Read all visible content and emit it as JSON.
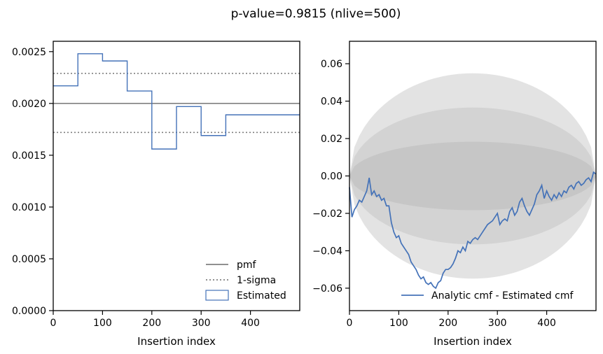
{
  "figure": {
    "suptitle": "p-value=0.9815 (nlive=500)"
  },
  "colors": {
    "estimated": "#4472b8",
    "pmf": "#808080",
    "sigma": "#808080",
    "band1": "#c6c6c6",
    "band2": "#d3d3d3",
    "band3": "#e3e3e3",
    "axes": "#000000"
  },
  "chart_data": [
    {
      "type": "step",
      "title": "",
      "xlabel": "Insertion index",
      "ylabel": "",
      "xlim": [
        0,
        500
      ],
      "ylim": [
        0,
        0.0026
      ],
      "xticks": [
        0,
        100,
        200,
        300,
        400
      ],
      "xtick_labels": [
        "0",
        "100",
        "200",
        "300",
        "400"
      ],
      "yticks": [
        0,
        0.0005,
        0.001,
        0.0015,
        0.002,
        0.0025
      ],
      "ytick_labels": [
        "0.0000",
        "0.0005",
        "0.0010",
        "0.0015",
        "0.0020",
        "0.0025"
      ],
      "grid": false,
      "legend_position": "lower-right",
      "pmf": 0.002,
      "one_sigma": [
        0.00172,
        0.00229
      ],
      "bin_edges": [
        0,
        50,
        100,
        150,
        200,
        250,
        300,
        350,
        500
      ],
      "estimated": [
        0.00217,
        0.00248,
        0.00241,
        0.00212,
        0.00156,
        0.00197,
        0.00169,
        0.00189
      ],
      "series": [
        {
          "name": "pmf",
          "style": "solid"
        },
        {
          "name": "1-sigma",
          "style": "dotted"
        },
        {
          "name": "Estimated",
          "style": "step"
        }
      ]
    },
    {
      "type": "line",
      "title": "",
      "xlabel": "Insertion index",
      "ylabel": "",
      "xlim": [
        0,
        500
      ],
      "ylim": [
        -0.072,
        0.072
      ],
      "xticks": [
        0,
        100,
        200,
        300,
        400
      ],
      "xtick_labels": [
        "0",
        "100",
        "200",
        "300",
        "400"
      ],
      "yticks": [
        -0.06,
        -0.04,
        -0.02,
        0.0,
        0.02,
        0.04,
        0.06
      ],
      "ytick_labels": [
        "−0.06",
        "−0.04",
        "−0.02",
        "0.00",
        "0.02",
        "0.04",
        "0.06"
      ],
      "grid": false,
      "legend_position": "lower-right",
      "band_half_widths": [
        0.0183,
        0.0366,
        0.0549
      ],
      "series": [
        {
          "name": "Analytic cmf - Estimated cmf",
          "x": [
            0,
            5,
            10,
            15,
            20,
            25,
            30,
            35,
            40,
            45,
            50,
            55,
            60,
            65,
            70,
            75,
            80,
            85,
            90,
            95,
            100,
            105,
            110,
            115,
            120,
            125,
            130,
            135,
            140,
            145,
            150,
            155,
            160,
            165,
            170,
            175,
            180,
            185,
            190,
            195,
            200,
            205,
            210,
            215,
            220,
            225,
            230,
            235,
            240,
            245,
            250,
            255,
            260,
            265,
            270,
            275,
            280,
            285,
            290,
            295,
            300,
            305,
            310,
            315,
            320,
            325,
            330,
            335,
            340,
            345,
            350,
            355,
            360,
            365,
            370,
            375,
            380,
            385,
            390,
            395,
            400,
            405,
            410,
            415,
            420,
            425,
            430,
            435,
            440,
            445,
            450,
            455,
            460,
            465,
            470,
            475,
            480,
            485,
            490,
            495,
            500
          ],
          "y": [
            -0.006,
            -0.022,
            -0.018,
            -0.016,
            -0.013,
            -0.014,
            -0.011,
            -0.008,
            -0.001,
            -0.01,
            -0.008,
            -0.011,
            -0.01,
            -0.013,
            -0.012,
            -0.016,
            -0.016,
            -0.025,
            -0.03,
            -0.033,
            -0.032,
            -0.036,
            -0.038,
            -0.04,
            -0.042,
            -0.046,
            -0.048,
            -0.05,
            -0.053,
            -0.055,
            -0.054,
            -0.057,
            -0.058,
            -0.057,
            -0.059,
            -0.06,
            -0.057,
            -0.056,
            -0.052,
            -0.05,
            -0.05,
            -0.049,
            -0.047,
            -0.044,
            -0.04,
            -0.041,
            -0.038,
            -0.04,
            -0.035,
            -0.036,
            -0.034,
            -0.033,
            -0.034,
            -0.032,
            -0.03,
            -0.028,
            -0.026,
            -0.025,
            -0.024,
            -0.022,
            -0.02,
            -0.026,
            -0.024,
            -0.023,
            -0.024,
            -0.019,
            -0.017,
            -0.021,
            -0.019,
            -0.014,
            -0.012,
            -0.016,
            -0.019,
            -0.021,
            -0.018,
            -0.015,
            -0.01,
            -0.008,
            -0.005,
            -0.012,
            -0.008,
            -0.011,
            -0.013,
            -0.01,
            -0.012,
            -0.009,
            -0.011,
            -0.008,
            -0.009,
            -0.006,
            -0.005,
            -0.007,
            -0.004,
            -0.003,
            -0.005,
            -0.004,
            -0.002,
            -0.001,
            -0.003,
            0.002,
            0.001
          ]
        }
      ]
    }
  ]
}
